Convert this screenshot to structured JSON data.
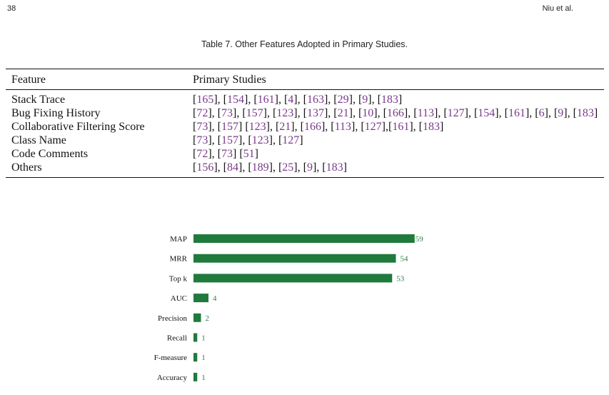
{
  "header": {
    "page_number": "38",
    "authors": "Niu et al."
  },
  "table": {
    "caption": "Table 7.  Other Features Adopted in Primary Studies.",
    "columns": [
      "Feature",
      "Primary Studies"
    ],
    "rows": [
      {
        "feature": "Stack Trace",
        "refs": "[165], [154], [161], [4], [163], [29], [9], [183]"
      },
      {
        "feature": "Bug Fixing History",
        "refs": "[72], [73], [157], [123], [137], [21], [10], [166], [113], [127], [154], [161], [6], [9], [183]"
      },
      {
        "feature": "Collaborative Filtering Score",
        "refs": "[73], [157] [123], [21], [166], [113], [127],[161], [183]"
      },
      {
        "feature": "Class Name",
        "refs": "[73], [157], [123], [127]"
      },
      {
        "feature": "Code Comments",
        "refs": "[72], [73] [51]"
      },
      {
        "feature": "Others",
        "refs": "[156], [84], [189], [25], [9], [183]"
      }
    ]
  },
  "chart_data": {
    "type": "bar",
    "orientation": "horizontal",
    "categories": [
      "MAP",
      "MRR",
      "Top k",
      "AUC",
      "Precision",
      "Recall",
      "F-measure",
      "Accuracy"
    ],
    "values": [
      59,
      54,
      53,
      4,
      2,
      1,
      1,
      1
    ],
    "bar_color": "#1f7a3c",
    "label_color": "#2e7d4a",
    "grid": false
  }
}
